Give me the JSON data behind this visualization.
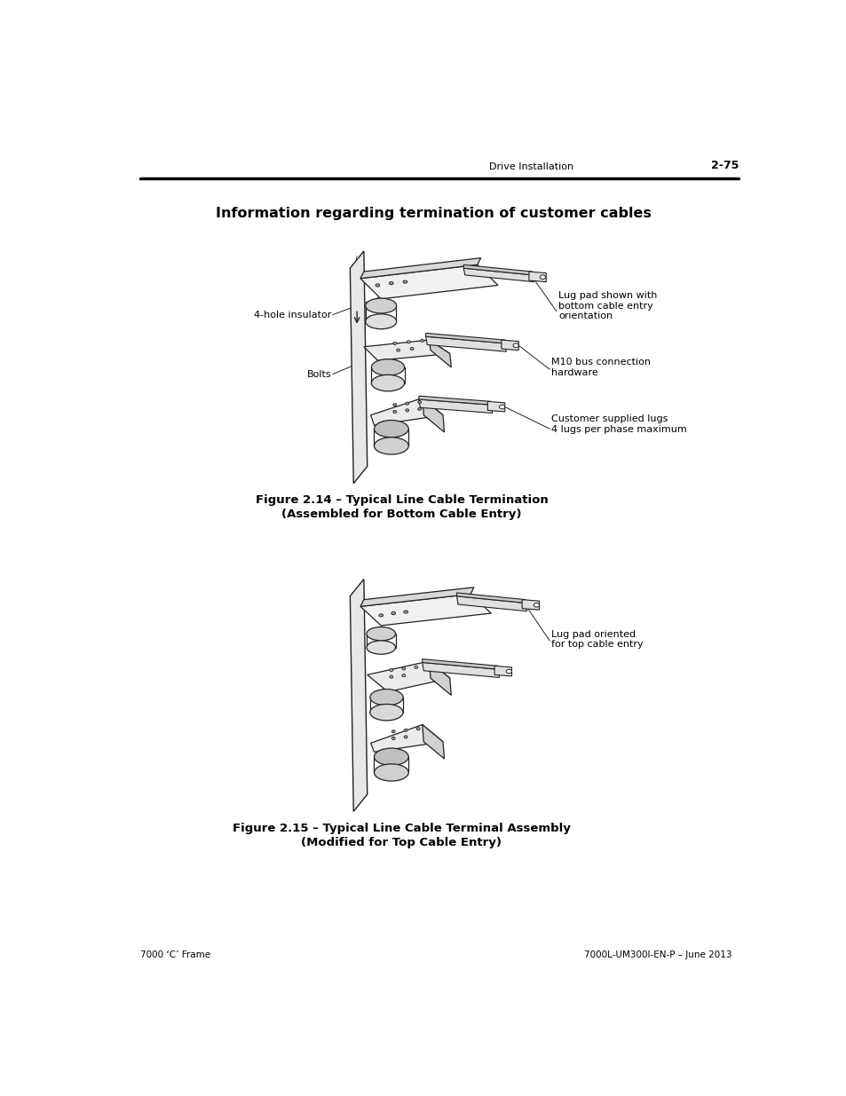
{
  "page_bg": "#ffffff",
  "header_text": "Drive Installation",
  "header_page": "2-75",
  "footer_left": "7000 ‘C’ Frame",
  "footer_right": "7000L-UM300I-EN-P – June 2013",
  "title": "Information regarding termination of customer cables",
  "fig1_caption_line1": "Figure 2.14 – Typical Line Cable Termination",
  "fig1_caption_line2": "(Assembled for Bottom Cable Entry)",
  "fig2_caption_line1": "Figure 2.15 – Typical Line Cable Terminal Assembly",
  "fig2_caption_line2": "(Modified for Top Cable Entry)"
}
